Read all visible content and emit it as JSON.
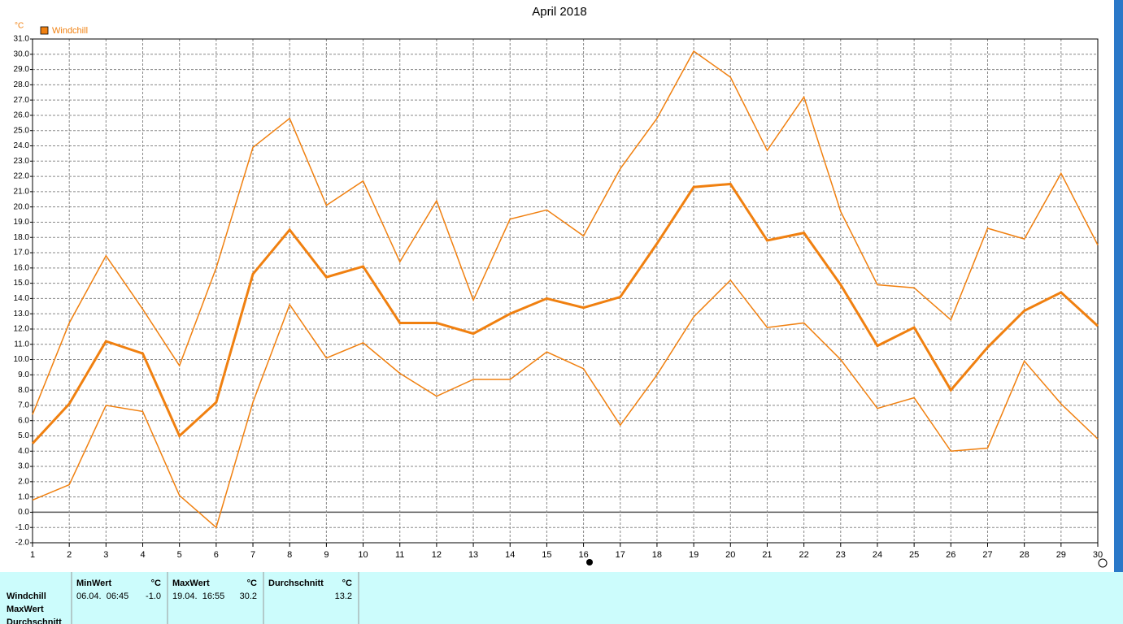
{
  "chart_data": {
    "type": "line",
    "title": "April 2018",
    "y_unit": "°C",
    "categories": [
      "1",
      "2",
      "3",
      "4",
      "5",
      "6",
      "7",
      "8",
      "9",
      "10",
      "11",
      "12",
      "13",
      "14",
      "15",
      "16",
      "17",
      "18",
      "19",
      "20",
      "21",
      "22",
      "23",
      "24",
      "25",
      "26",
      "27",
      "28",
      "29",
      "30"
    ],
    "series": [
      {
        "name": "Windchill",
        "color": "#f08010",
        "width": 3,
        "values": [
          4.5,
          7.1,
          11.2,
          10.4,
          5.0,
          7.2,
          15.6,
          18.5,
          15.4,
          16.1,
          12.4,
          12.4,
          11.7,
          13.0,
          14.0,
          13.4,
          14.1,
          17.6,
          21.3,
          21.5,
          17.8,
          18.3,
          14.9,
          10.9,
          12.1,
          8.0,
          10.8,
          13.2,
          14.4,
          12.2
        ]
      },
      {
        "color": "#f08010",
        "width": 1.5,
        "values": [
          6.4,
          12.4,
          16.8,
          13.3,
          9.6,
          16.0,
          23.9,
          25.8,
          20.1,
          21.7,
          16.4,
          20.4,
          13.9,
          19.2,
          19.8,
          18.1,
          22.5,
          25.8,
          30.2,
          28.5,
          23.7,
          27.2,
          19.7,
          14.9,
          14.7,
          12.6,
          18.6,
          17.9,
          22.2,
          17.5
        ]
      },
      {
        "color": "#f08010",
        "width": 1.5,
        "values": [
          0.8,
          1.8,
          7.0,
          6.6,
          1.1,
          -1.0,
          7.2,
          13.6,
          10.1,
          11.1,
          9.1,
          7.6,
          8.7,
          8.7,
          10.5,
          9.4,
          5.7,
          9.0,
          12.8,
          15.2,
          12.1,
          12.4,
          10.0,
          6.8,
          7.5,
          4.0,
          4.2,
          9.9,
          7.1,
          4.8
        ]
      }
    ],
    "ylim": [
      -2,
      31
    ],
    "yticks": [
      {
        "value": -2,
        "label": "-2.0"
      },
      {
        "value": -1,
        "label": "-1.0"
      },
      {
        "value": 0,
        "label": "0.0"
      },
      {
        "value": 1,
        "label": "1.0"
      },
      {
        "value": 2,
        "label": "2.0"
      },
      {
        "value": 3,
        "label": "3.0"
      },
      {
        "value": 4,
        "label": "4.0"
      },
      {
        "value": 5,
        "label": "5.0"
      },
      {
        "value": 6,
        "label": "6.0"
      },
      {
        "value": 7,
        "label": "7.0"
      },
      {
        "value": 8,
        "label": "8.0"
      },
      {
        "value": 9,
        "label": "9.0"
      },
      {
        "value": 10,
        "label": "10.0"
      },
      {
        "value": 11,
        "label": "11.0"
      },
      {
        "value": 12,
        "label": "12.0"
      },
      {
        "value": 13,
        "label": "13.0"
      },
      {
        "value": 14,
        "label": "14.0"
      },
      {
        "value": 15,
        "label": "15.0"
      },
      {
        "value": 16,
        "label": "16.0"
      },
      {
        "value": 17,
        "label": "17.0"
      },
      {
        "value": 18,
        "label": "18.0"
      },
      {
        "value": 19,
        "label": "19.0"
      },
      {
        "value": 20,
        "label": "20.0"
      },
      {
        "value": 21,
        "label": "21.0"
      },
      {
        "value": 22,
        "label": "22.0"
      },
      {
        "value": 23,
        "label": "23.0"
      },
      {
        "value": 24,
        "label": "24.0"
      },
      {
        "value": 25,
        "label": "25.0"
      },
      {
        "value": 26,
        "label": "26.0"
      },
      {
        "value": 27,
        "label": "27.0"
      },
      {
        "value": 28,
        "label": "28.0"
      },
      {
        "value": 29,
        "label": "29.0"
      },
      {
        "value": 30,
        "label": "30.0"
      },
      {
        "value": 31,
        "label": "31.0"
      }
    ],
    "grid": true
  },
  "table": {
    "row_labels": [
      "Windchill",
      "MaxWert",
      "Durchschnitt"
    ],
    "columns": [
      {
        "header": "MinWert",
        "unit": "°C",
        "time": "06.04.  06:45",
        "value": "-1.0"
      },
      {
        "header": "MaxWert",
        "unit": "°C",
        "time": "19.04.  16:55",
        "value": "30.2"
      },
      {
        "header": "Durchschnitt",
        "unit": "°C",
        "value": "13.2"
      }
    ]
  }
}
